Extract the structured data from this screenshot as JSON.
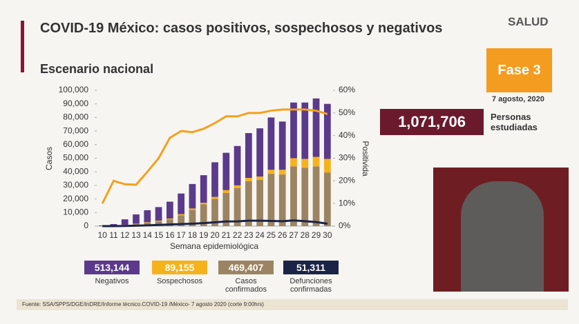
{
  "header": {
    "title": "COVID-19 México: casos positivos, sospechosos y negativos",
    "subtitle": "Escenario nacional",
    "logo": "SALUD",
    "phase": "Fase 3",
    "date": "7 agosto, 2020",
    "studied_value": "1,071,706",
    "studied_label": "Personas estudiadas"
  },
  "source": "Fuente: SSA/SPPS/DGE/InDRE/Informe técnico.COVID-19 /México- 7 agosto 2020 (corte 9:00hrs)",
  "chart_data": {
    "type": "bar",
    "stacked": true,
    "x_label": "Semana epidemiológica",
    "y_label": "Casos",
    "y2_label": "Positivida",
    "categories": [
      "10",
      "11",
      "12",
      "13",
      "14",
      "15",
      "16",
      "17",
      "18",
      "19",
      "20",
      "21",
      "22",
      "23",
      "24",
      "25",
      "26",
      "27",
      "28",
      "29",
      "30"
    ],
    "ylim": [
      0,
      100000
    ],
    "yticks": [
      0,
      {
        "value": 10000,
        "label": "10,000"
      },
      {
        "value": 20000,
        "label": "20,000"
      },
      {
        "value": 30000,
        "label": "30,000"
      },
      {
        "value": 40000,
        "label": "40,000"
      },
      {
        "value": 50000,
        "label": "50,000"
      },
      {
        "value": 60000,
        "label": "60,000"
      },
      {
        "value": 70000,
        "label": "70,000"
      },
      {
        "value": 80000,
        "label": "80,000"
      },
      {
        "value": 90000,
        "label": "90,000"
      },
      {
        "value": 100000,
        "label": "100,000"
      }
    ],
    "y2lim": [
      0,
      60
    ],
    "y2ticks": [
      {
        "value": 0,
        "label": "0%"
      },
      {
        "value": 10,
        "label": "10%"
      },
      {
        "value": 20,
        "label": "20%"
      },
      {
        "value": 30,
        "label": "30%"
      },
      {
        "value": 40,
        "label": "40%"
      },
      {
        "value": 50,
        "label": "50%"
      },
      {
        "value": 60,
        "label": "60%"
      }
    ],
    "series": [
      {
        "name": "Casos confirmados",
        "total": "469,407",
        "color": "#9c8462",
        "kind": "bar",
        "values": [
          100,
          300,
          800,
          1500,
          2500,
          3500,
          5000,
          8000,
          12000,
          16000,
          20000,
          24500,
          28000,
          33000,
          34000,
          38500,
          38000,
          44000,
          43000,
          44000,
          39500
        ]
      },
      {
        "name": "Sospechosos",
        "total": "89,155",
        "color": "#f6b21b",
        "kind": "bar",
        "values": [
          0,
          100,
          200,
          300,
          400,
          500,
          600,
          800,
          1000,
          1200,
          1500,
          2000,
          2000,
          2500,
          2500,
          3000,
          3500,
          6000,
          6500,
          7000,
          10000
        ]
      },
      {
        "name": "Negativos",
        "total": "513,144",
        "color": "#5b3a8c",
        "kind": "bar",
        "values": [
          400,
          1100,
          4000,
          6800,
          8800,
          10000,
          12400,
          15200,
          18000,
          20300,
          25500,
          27500,
          29000,
          33000,
          35500,
          38500,
          35500,
          41000,
          41500,
          43000,
          40500
        ]
      },
      {
        "color": "#f4a01c",
        "kind": "line",
        "axis": "y2",
        "values": [
          10,
          20,
          18.5,
          18.3,
          24,
          30,
          39,
          42,
          41.5,
          43,
          45.5,
          48.5,
          48.5,
          50,
          50,
          51,
          51.5,
          51.5,
          51.5,
          51,
          49.5
        ]
      },
      {
        "name": "Defunciones confirmadas",
        "total": "51,311",
        "color": "#1b2446",
        "kind": "line",
        "values": [
          0,
          0,
          100,
          300,
          600,
          900,
          1200,
          1500,
          1800,
          2200,
          2800,
          3400,
          3500,
          4000,
          4000,
          3800,
          3600,
          4200,
          3600,
          3000,
          1800
        ]
      }
    ]
  }
}
